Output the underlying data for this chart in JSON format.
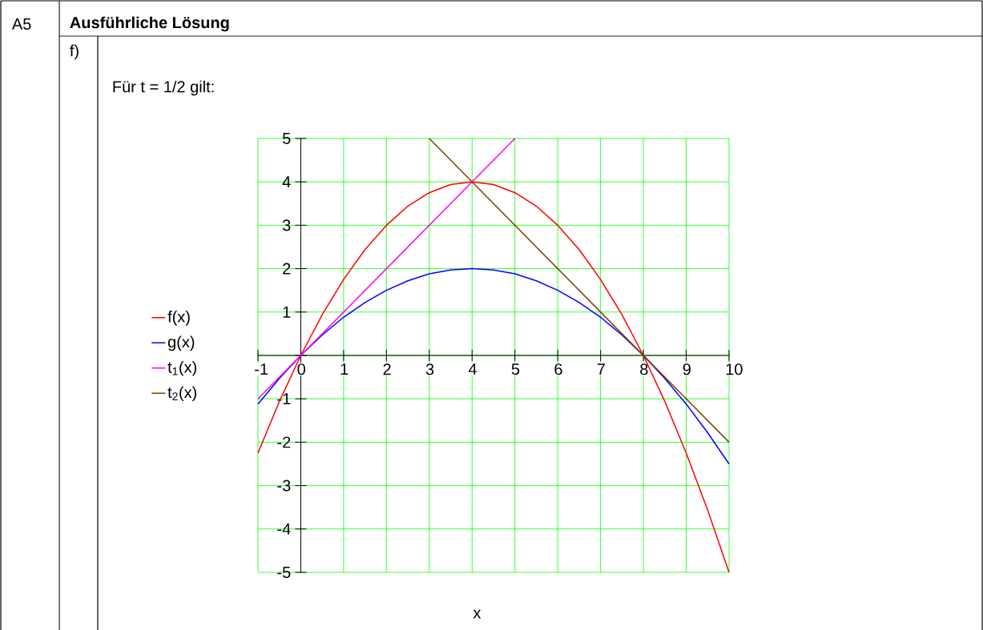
{
  "chart_data": {
    "type": "line",
    "title": "Ausführliche Lösung",
    "xlabel": "x",
    "annotations": [
      "A5",
      "f)",
      "Für t = 1/2 gilt:"
    ],
    "xlim": [
      -1,
      10
    ],
    "ylim": [
      -5,
      5
    ],
    "xticks": [
      -1,
      {
        "value": 0,
        "label": "0"
      },
      1,
      2,
      3,
      4,
      5,
      6,
      7,
      8,
      9,
      10
    ],
    "yticks": [
      -5,
      -4,
      -3,
      -2,
      -1,
      {
        "value": 0,
        "label": null
      },
      1,
      2,
      3,
      4,
      5
    ],
    "grid": true,
    "legend": "left",
    "marker": "none",
    "line_style": "solid",
    "series": [
      {
        "name": "f(x)",
        "color": "#ff0000",
        "x": [
          -1,
          -0.5,
          0,
          0.5,
          1,
          1.5,
          2,
          2.5,
          3,
          3.5,
          4,
          4.5,
          5,
          5.5,
          6,
          6.5,
          7,
          7.5,
          8,
          8.5,
          9,
          9.5,
          10
        ],
        "values": [
          -2.25,
          -1.06,
          0,
          0.94,
          1.75,
          2.44,
          3,
          3.44,
          3.75,
          3.94,
          4,
          3.94,
          3.75,
          3.44,
          3,
          2.44,
          1.75,
          0.94,
          0,
          -1.06,
          -2.25,
          -3.56,
          -5
        ]
      },
      {
        "name": "g(x)",
        "color": "#0000ff",
        "x": [
          -1,
          -0.5,
          0,
          0.5,
          1,
          1.5,
          2,
          2.5,
          3,
          3.5,
          4,
          4.5,
          5,
          5.5,
          6,
          6.5,
          7,
          7.5,
          8,
          8.5,
          9,
          9.5,
          10
        ],
        "values": [
          -1.12,
          -0.53,
          0,
          0.47,
          0.88,
          1.22,
          1.5,
          1.72,
          1.88,
          1.97,
          2,
          1.97,
          1.88,
          1.72,
          1.5,
          1.22,
          0.88,
          0.47,
          0,
          -0.53,
          -1.12,
          -1.78,
          -2.5
        ]
      },
      {
        "name": "t$_{1}$(x)",
        "color": "#ff00ff",
        "x": [
          -1,
          5
        ],
        "values": [
          -1,
          5
        ]
      },
      {
        "name": "t$_{2}$(x)",
        "color": "#804000",
        "x": [
          3,
          10
        ],
        "values": [
          5,
          -2
        ]
      }
    ]
  }
}
